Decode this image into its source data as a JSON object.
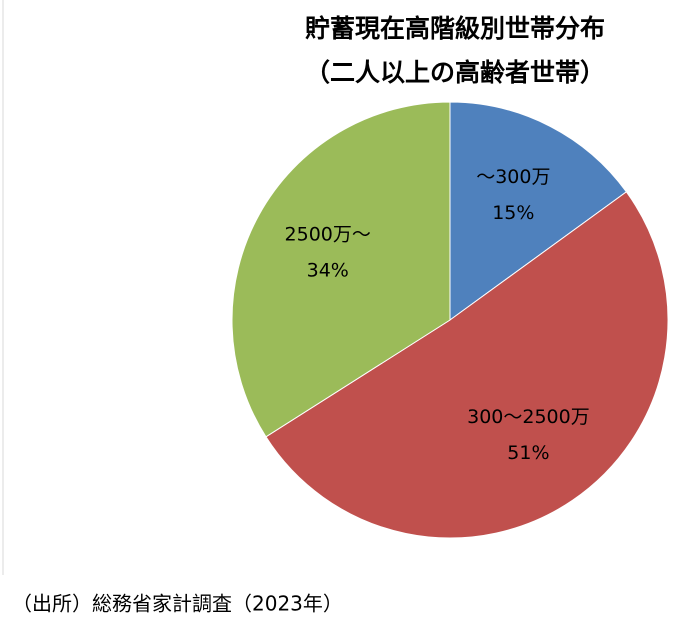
{
  "chart_data": {
    "type": "pie",
    "title": "貯蓄現在高階級別世帯分布",
    "subtitle": "（二人以上の高齢者世帯）",
    "categories": [
      "～300万",
      "300～2500万",
      "2500万～"
    ],
    "values": [
      15,
      51,
      34
    ],
    "value_labels": [
      "15%",
      "51%",
      "34%"
    ],
    "colors": [
      "#4f81bd",
      "#c0504d",
      "#9bbb59"
    ],
    "source": "（出所）総務省家計調査（2023年）"
  }
}
